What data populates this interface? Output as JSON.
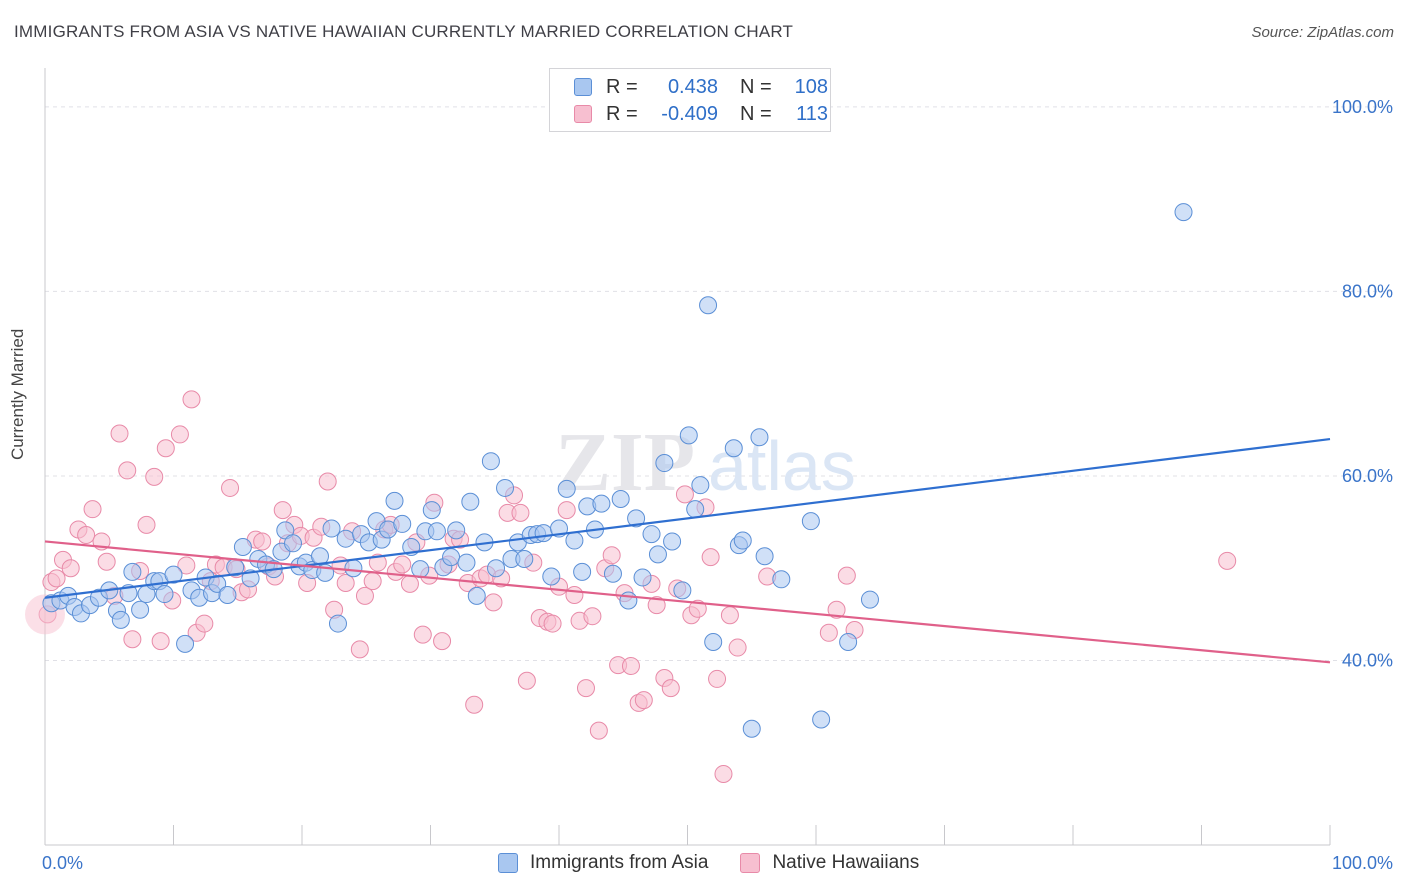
{
  "title": "IMMIGRANTS FROM ASIA VS NATIVE HAWAIIAN CURRENTLY MARRIED CORRELATION CHART",
  "source": "Source: ZipAtlas.com",
  "watermark": "ZIPatlas",
  "legend": {
    "series": [
      {
        "r_label": "R =",
        "r_value": "0.438",
        "n_label": "N =",
        "n_value": "108"
      },
      {
        "r_label": "R =",
        "r_value": "-0.409",
        "n_label": "N =",
        "n_value": "113"
      }
    ]
  },
  "bottom_legend": [
    "Immigrants from Asia",
    "Native Hawaiians"
  ],
  "colors": {
    "blue_fill": "#a9c7f0",
    "blue_stroke": "#5b8fd6",
    "blue_line": "#2f6fd0",
    "pink_fill": "#f7bfd0",
    "pink_stroke": "#e88aa8",
    "pink_line": "#e0608a",
    "tick_text": "#3a74c9",
    "grid": "#e0e0e6"
  },
  "chart_data": {
    "type": "scatter",
    "title": "IMMIGRANTS FROM ASIA VS NATIVE HAWAIIAN CURRENTLY MARRIED CORRELATION CHART",
    "xlabel": "",
    "ylabel": "Currently Married",
    "xlim": [
      0,
      100
    ],
    "ylim": [
      20,
      104
    ],
    "x_tick_labels": [
      "0.0%",
      "100.0%"
    ],
    "y_ticks": [
      40,
      60,
      80,
      100
    ],
    "y_tick_labels": [
      "40.0%",
      "60.0%",
      "80.0%",
      "100.0%"
    ],
    "grid": true,
    "legend_placement": "top-center",
    "series": [
      {
        "name": "Immigrants from Asia",
        "trend": [
          [
            0,
            46.8
          ],
          [
            100,
            64.0
          ]
        ],
        "points": [
          [
            0.5,
            46.2
          ],
          [
            1.2,
            46.5
          ],
          [
            1.8,
            47.0
          ],
          [
            2.3,
            45.8
          ],
          [
            2.8,
            45.1
          ],
          [
            3.5,
            46.0
          ],
          [
            4.2,
            46.8
          ],
          [
            5.0,
            47.6
          ],
          [
            5.6,
            45.4
          ],
          [
            5.9,
            44.4
          ],
          [
            6.5,
            47.3
          ],
          [
            6.8,
            49.6
          ],
          [
            7.4,
            45.5
          ],
          [
            7.9,
            47.2
          ],
          [
            8.5,
            48.6
          ],
          [
            8.9,
            48.6
          ],
          [
            9.3,
            47.2
          ],
          [
            10.0,
            49.3
          ],
          [
            10.9,
            41.8
          ],
          [
            11.4,
            47.6
          ],
          [
            12.0,
            46.8
          ],
          [
            12.5,
            49.0
          ],
          [
            13.0,
            47.3
          ],
          [
            13.4,
            48.3
          ],
          [
            14.2,
            47.1
          ],
          [
            14.8,
            50.1
          ],
          [
            15.4,
            52.3
          ],
          [
            16.0,
            48.9
          ],
          [
            16.6,
            51.0
          ],
          [
            17.2,
            50.4
          ],
          [
            17.8,
            49.9
          ],
          [
            18.4,
            51.8
          ],
          [
            18.7,
            54.1
          ],
          [
            19.3,
            52.7
          ],
          [
            19.8,
            50.2
          ],
          [
            20.3,
            50.6
          ],
          [
            20.8,
            49.8
          ],
          [
            21.4,
            51.3
          ],
          [
            21.8,
            49.5
          ],
          [
            22.3,
            54.3
          ],
          [
            22.8,
            44.0
          ],
          [
            23.4,
            53.2
          ],
          [
            24.0,
            50.0
          ],
          [
            24.6,
            53.7
          ],
          [
            25.2,
            52.8
          ],
          [
            25.8,
            55.1
          ],
          [
            26.2,
            53.1
          ],
          [
            26.7,
            54.2
          ],
          [
            27.2,
            57.3
          ],
          [
            27.8,
            54.8
          ],
          [
            28.5,
            52.3
          ],
          [
            29.2,
            49.9
          ],
          [
            29.6,
            54.0
          ],
          [
            30.1,
            56.3
          ],
          [
            30.5,
            54.0
          ],
          [
            31.0,
            50.1
          ],
          [
            31.6,
            51.2
          ],
          [
            32.0,
            54.1
          ],
          [
            32.8,
            50.6
          ],
          [
            33.1,
            57.2
          ],
          [
            33.6,
            47.0
          ],
          [
            34.2,
            52.8
          ],
          [
            34.7,
            61.6
          ],
          [
            35.1,
            50.0
          ],
          [
            35.8,
            58.7
          ],
          [
            36.3,
            51.0
          ],
          [
            36.8,
            52.8
          ],
          [
            37.3,
            51.0
          ],
          [
            37.8,
            53.6
          ],
          [
            38.3,
            53.7
          ],
          [
            38.8,
            53.8
          ],
          [
            39.4,
            49.1
          ],
          [
            40.0,
            54.3
          ],
          [
            40.6,
            58.6
          ],
          [
            41.2,
            53.0
          ],
          [
            41.8,
            49.6
          ],
          [
            42.2,
            56.7
          ],
          [
            42.8,
            54.2
          ],
          [
            43.3,
            57.0
          ],
          [
            44.2,
            49.4
          ],
          [
            44.8,
            57.5
          ],
          [
            45.4,
            46.5
          ],
          [
            46.0,
            55.4
          ],
          [
            46.5,
            49.0
          ],
          [
            47.2,
            53.7
          ],
          [
            47.7,
            51.5
          ],
          [
            48.2,
            61.4
          ],
          [
            48.8,
            52.9
          ],
          [
            49.6,
            47.6
          ],
          [
            50.1,
            64.4
          ],
          [
            50.6,
            56.4
          ],
          [
            51.0,
            59.0
          ],
          [
            51.6,
            78.5
          ],
          [
            52.0,
            42.0
          ],
          [
            53.6,
            63.0
          ],
          [
            54.0,
            52.5
          ],
          [
            54.3,
            53.0
          ],
          [
            55.0,
            32.6
          ],
          [
            55.6,
            64.2
          ],
          [
            56.0,
            51.3
          ],
          [
            57.3,
            48.8
          ],
          [
            59.6,
            55.1
          ],
          [
            60.4,
            33.6
          ],
          [
            62.5,
            42.0
          ],
          [
            64.2,
            46.6
          ],
          [
            88.6,
            88.6
          ]
        ]
      },
      {
        "name": "Native Hawaiians",
        "trend": [
          [
            0,
            52.9
          ],
          [
            100,
            39.8
          ]
        ],
        "points": [
          [
            0.2,
            45.0
          ],
          [
            0.5,
            48.5
          ],
          [
            0.9,
            48.9
          ],
          [
            1.4,
            50.9
          ],
          [
            2.0,
            50.0
          ],
          [
            2.6,
            54.2
          ],
          [
            3.2,
            53.6
          ],
          [
            3.7,
            56.4
          ],
          [
            4.4,
            52.9
          ],
          [
            4.8,
            50.7
          ],
          [
            5.4,
            47.0
          ],
          [
            5.8,
            64.6
          ],
          [
            6.4,
            60.6
          ],
          [
            6.8,
            42.3
          ],
          [
            7.4,
            49.7
          ],
          [
            7.9,
            54.7
          ],
          [
            8.5,
            59.9
          ],
          [
            9.0,
            42.1
          ],
          [
            9.4,
            63.0
          ],
          [
            9.9,
            46.5
          ],
          [
            10.5,
            64.5
          ],
          [
            11.0,
            50.3
          ],
          [
            11.4,
            68.3
          ],
          [
            11.8,
            43.0
          ],
          [
            12.4,
            44.0
          ],
          [
            12.9,
            48.6
          ],
          [
            13.3,
            50.4
          ],
          [
            13.9,
            50.1
          ],
          [
            14.4,
            58.7
          ],
          [
            14.9,
            49.9
          ],
          [
            15.3,
            47.4
          ],
          [
            15.8,
            47.7
          ],
          [
            16.4,
            53.1
          ],
          [
            16.9,
            52.9
          ],
          [
            17.4,
            50.2
          ],
          [
            17.9,
            49.1
          ],
          [
            18.5,
            56.3
          ],
          [
            18.9,
            52.7
          ],
          [
            19.4,
            54.7
          ],
          [
            19.9,
            53.5
          ],
          [
            20.4,
            48.4
          ],
          [
            20.9,
            53.3
          ],
          [
            21.5,
            54.5
          ],
          [
            22.0,
            59.4
          ],
          [
            22.5,
            45.5
          ],
          [
            23.0,
            50.3
          ],
          [
            23.4,
            48.4
          ],
          [
            23.9,
            54.0
          ],
          [
            24.5,
            41.2
          ],
          [
            24.9,
            47.0
          ],
          [
            25.5,
            48.6
          ],
          [
            25.9,
            50.6
          ],
          [
            26.4,
            54.2
          ],
          [
            26.9,
            54.7
          ],
          [
            27.3,
            49.6
          ],
          [
            27.8,
            50.4
          ],
          [
            28.4,
            48.3
          ],
          [
            28.9,
            52.8
          ],
          [
            29.4,
            42.8
          ],
          [
            29.9,
            49.2
          ],
          [
            30.3,
            57.1
          ],
          [
            30.9,
            42.1
          ],
          [
            31.4,
            50.4
          ],
          [
            31.8,
            53.2
          ],
          [
            32.3,
            53.1
          ],
          [
            32.9,
            48.4
          ],
          [
            33.4,
            35.2
          ],
          [
            33.9,
            48.9
          ],
          [
            34.4,
            49.3
          ],
          [
            34.9,
            46.3
          ],
          [
            35.5,
            48.9
          ],
          [
            36.0,
            56.0
          ],
          [
            36.5,
            57.9
          ],
          [
            37.0,
            56.0
          ],
          [
            37.5,
            37.8
          ],
          [
            38.0,
            50.6
          ],
          [
            38.5,
            44.6
          ],
          [
            39.1,
            44.2
          ],
          [
            39.5,
            44.0
          ],
          [
            40.0,
            48.0
          ],
          [
            40.6,
            56.3
          ],
          [
            41.2,
            47.1
          ],
          [
            41.6,
            44.3
          ],
          [
            42.1,
            37.0
          ],
          [
            42.6,
            44.8
          ],
          [
            43.1,
            32.4
          ],
          [
            43.6,
            50.0
          ],
          [
            44.1,
            51.4
          ],
          [
            44.6,
            39.5
          ],
          [
            45.1,
            47.3
          ],
          [
            45.6,
            39.4
          ],
          [
            46.2,
            35.4
          ],
          [
            46.6,
            35.7
          ],
          [
            47.2,
            48.3
          ],
          [
            47.6,
            46.0
          ],
          [
            48.2,
            38.1
          ],
          [
            48.7,
            37.0
          ],
          [
            49.2,
            47.8
          ],
          [
            49.8,
            58.0
          ],
          [
            50.3,
            44.9
          ],
          [
            50.8,
            45.6
          ],
          [
            51.4,
            56.6
          ],
          [
            51.8,
            51.2
          ],
          [
            52.3,
            38.0
          ],
          [
            52.8,
            27.7
          ],
          [
            53.3,
            44.9
          ],
          [
            53.9,
            41.4
          ],
          [
            56.2,
            49.1
          ],
          [
            61.0,
            43.0
          ],
          [
            61.6,
            45.5
          ],
          [
            62.4,
            49.2
          ],
          [
            63.0,
            43.3
          ],
          [
            92.0,
            50.8
          ]
        ]
      }
    ]
  }
}
